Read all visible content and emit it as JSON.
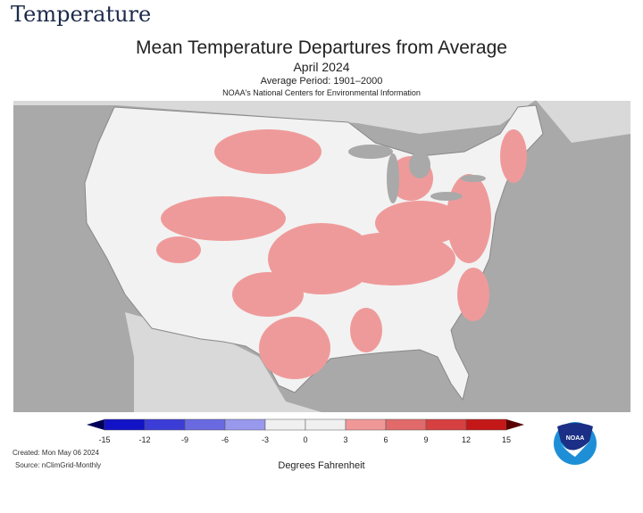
{
  "page_heading": "Temperature",
  "map": {
    "title": "Mean Temperature Departures from Average",
    "period": "April 2024",
    "average_period": "Average Period: 1901–2000",
    "source_org": "NOAA's National Centers for Environmental Information",
    "created": "Created: Mon May 06 2024",
    "source": "Source: nClimGrid-Monthly",
    "units_label": "Degrees Fahrenheit",
    "logo_text": "NOAA"
  },
  "legend": {
    "ticks": [
      "-15",
      "-12",
      "-9",
      "-6",
      "-3",
      "0",
      "3",
      "6",
      "9",
      "12",
      "15"
    ],
    "colors": [
      "#1212c6",
      "#3c3cd6",
      "#6a6ae0",
      "#9898ec",
      "#f0f0f0",
      "#f0f0f0",
      "#f09898",
      "#e26a6a",
      "#d64040",
      "#c41818"
    ],
    "low_end_color": "#00005a",
    "high_end_color": "#5a0000"
  }
}
